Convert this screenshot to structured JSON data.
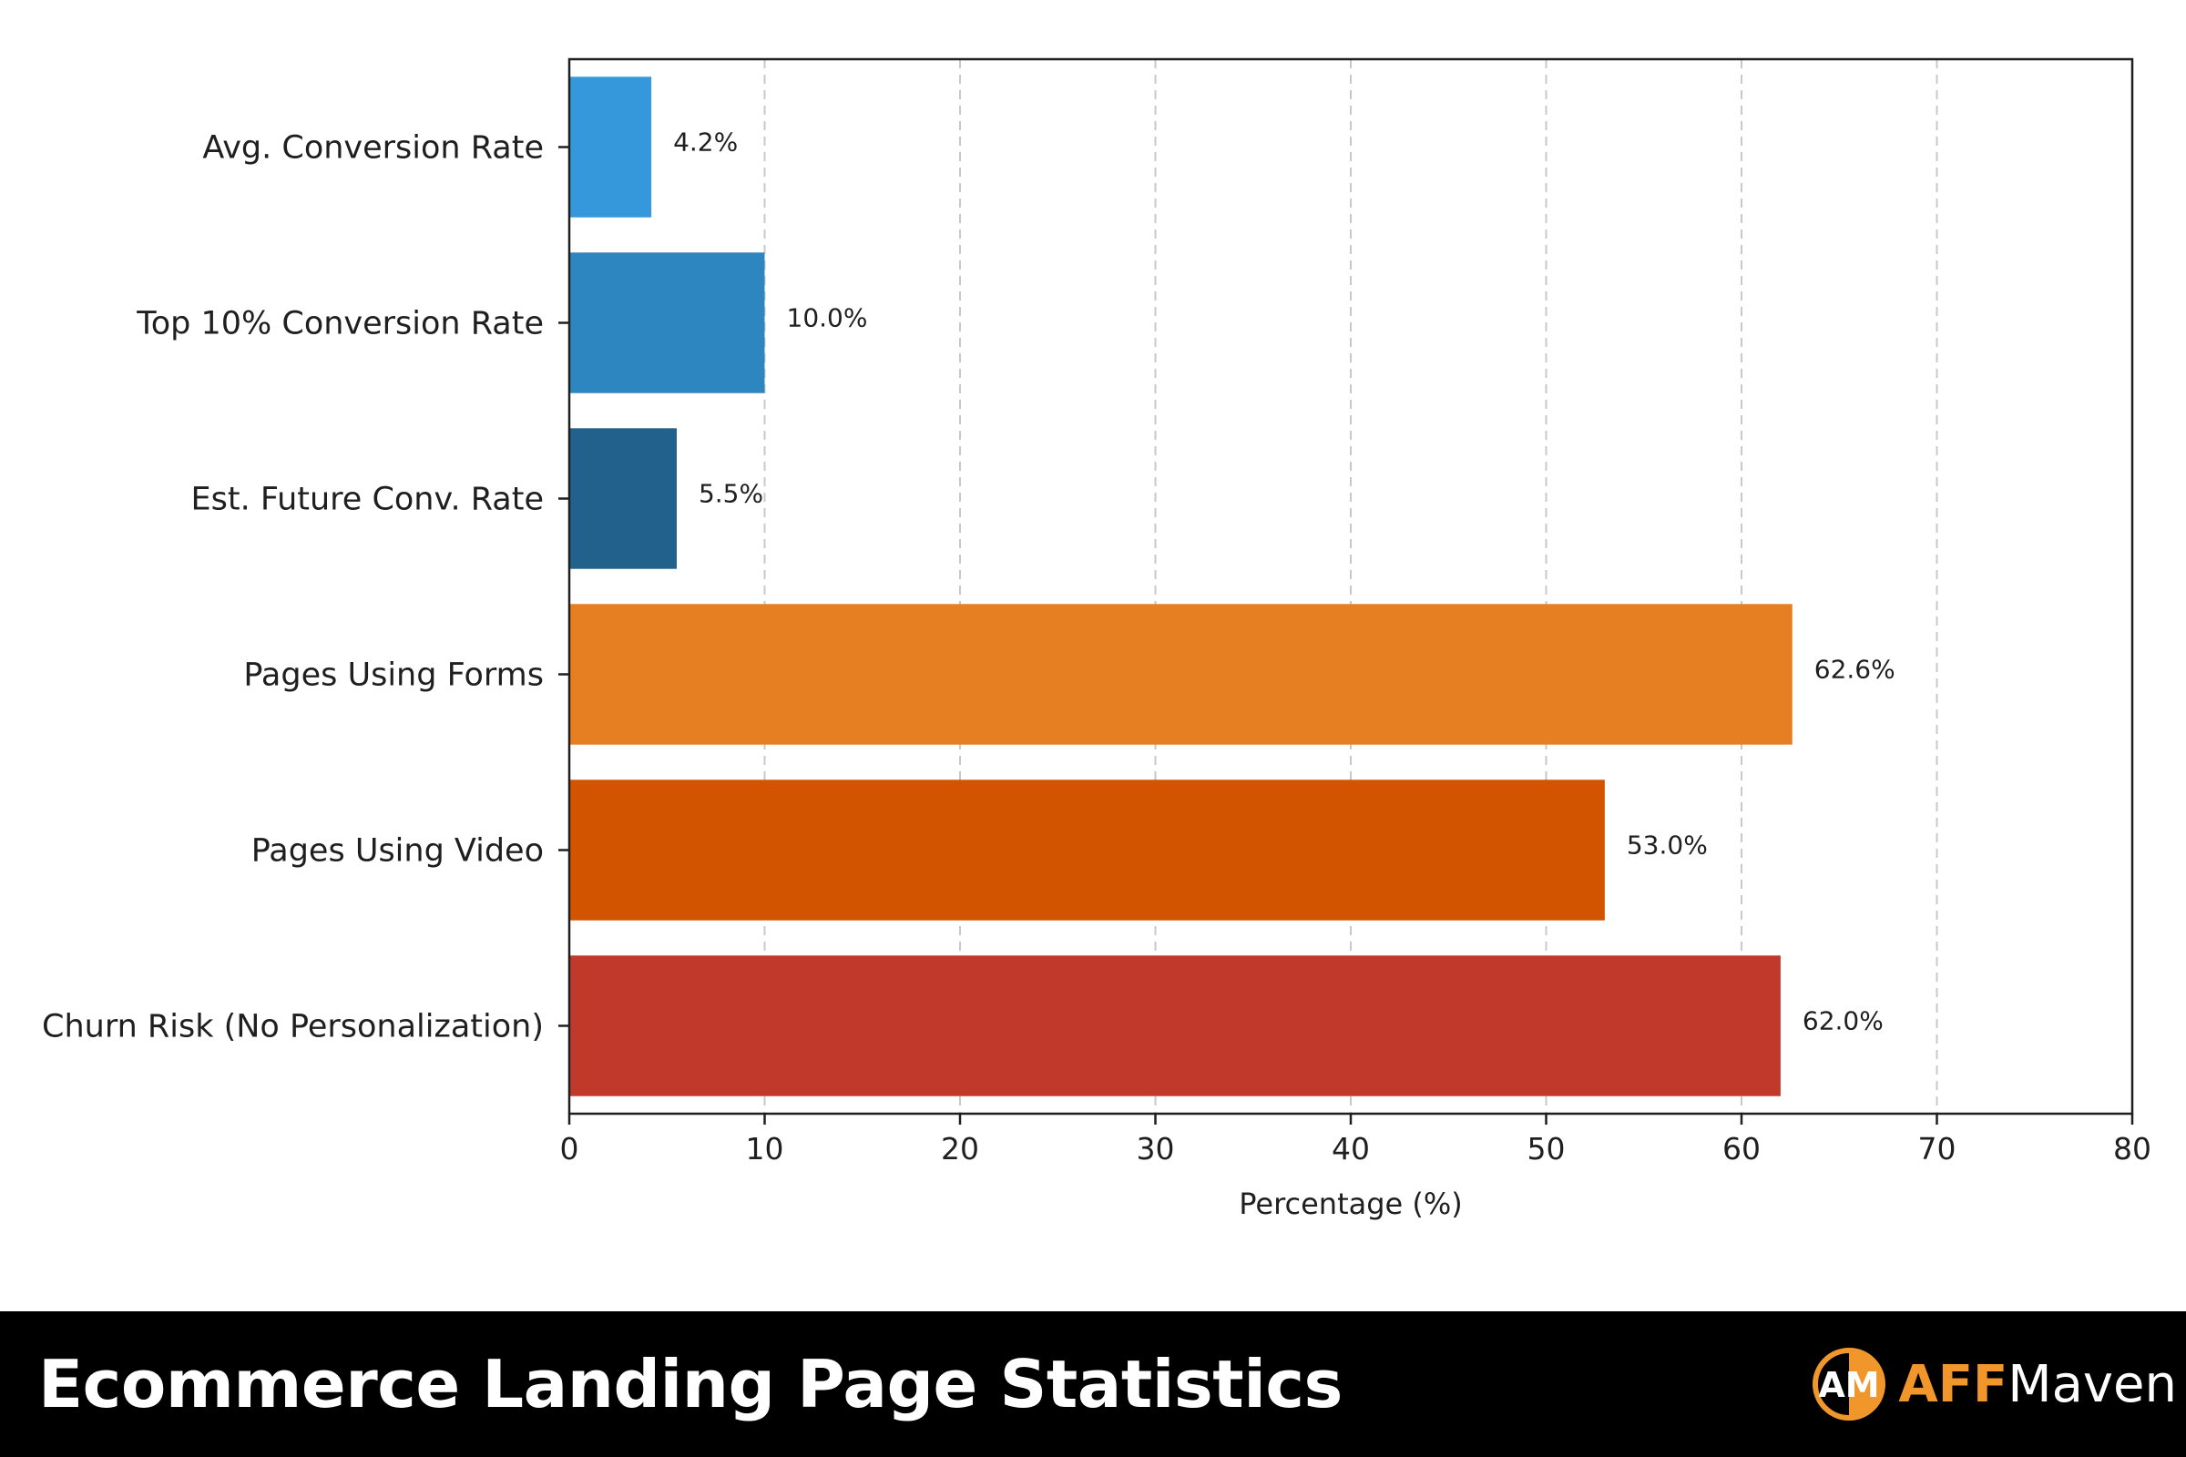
{
  "chart_data": {
    "type": "bar",
    "orientation": "horizontal",
    "categories": [
      "Avg. Conversion Rate",
      "Top 10% Conversion Rate",
      "Est. Future Conv. Rate",
      "Pages Using Forms",
      "Pages Using Video",
      "Churn Risk (No Personalization)"
    ],
    "values": [
      4.2,
      10.0,
      5.5,
      62.6,
      53.0,
      62.0
    ],
    "data_labels": [
      "4.2%",
      "10.0%",
      "5.5%",
      "62.6%",
      "53.0%",
      "62.0%"
    ],
    "colors": [
      "#3498db",
      "#2e86c1",
      "#21618c",
      "#e67e22",
      "#d35400",
      "#c0392b"
    ],
    "xlabel": "Percentage (%)",
    "xlim": [
      0,
      80
    ],
    "xticks": [
      0,
      10,
      20,
      30,
      40,
      50,
      60,
      70,
      80
    ],
    "grid": "vertical dashed"
  },
  "footer": {
    "title": "Ecommerce Landing Page Statistics",
    "brand_aff": "AFF",
    "brand_maven": "Maven",
    "logo_letters": "AM",
    "logo_color": "#f0962a"
  }
}
